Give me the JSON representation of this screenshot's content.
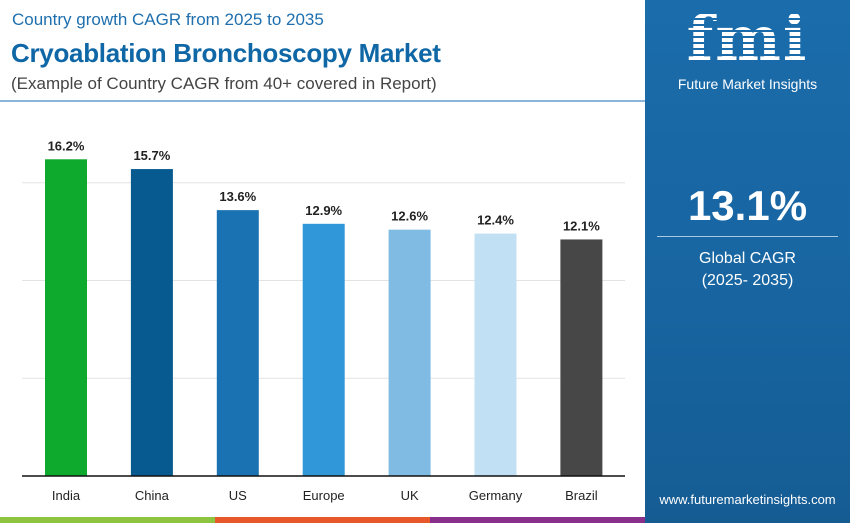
{
  "header": {
    "subtitle": "Country growth CAGR from 2025 to 2035",
    "title": "Cryoablation Bronchoscopy Market",
    "note": "(Example of Country CAGR from 40+ covered in Report)"
  },
  "panel": {
    "logo_text": "fmi",
    "brand_name": "Future Market Insights",
    "global_cagr": "13.1%",
    "global_cagr_label": "Global CAGR",
    "global_cagr_period": "(2025- 2035)",
    "website": "www.futuremarketinsights.com",
    "background_color": "#1a69a8"
  },
  "footer_strip_colors": [
    "#8cc43f",
    "#e8572a",
    "#8b2f8c"
  ],
  "chart_data": {
    "type": "bar",
    "title": "",
    "xlabel": "",
    "ylabel": "",
    "categories": [
      "India",
      "China",
      "US",
      "Europe",
      "UK",
      "Germany",
      "Brazil"
    ],
    "values": [
      16.2,
      15.7,
      13.6,
      12.9,
      12.6,
      12.4,
      12.1
    ],
    "data_labels": [
      "16.2%",
      "15.7%",
      "13.6%",
      "12.9%",
      "12.6%",
      "12.4%",
      "12.1%"
    ],
    "colors": [
      "#0daa2d",
      "#075a90",
      "#1b72b2",
      "#3097d8",
      "#7fbbe3",
      "#c2e0f3",
      "#474747"
    ],
    "ylim": [
      0,
      20
    ],
    "gridlines": [
      5,
      10,
      15
    ],
    "grid": true,
    "y_axis_labels_shown": false,
    "legend": "none"
  }
}
